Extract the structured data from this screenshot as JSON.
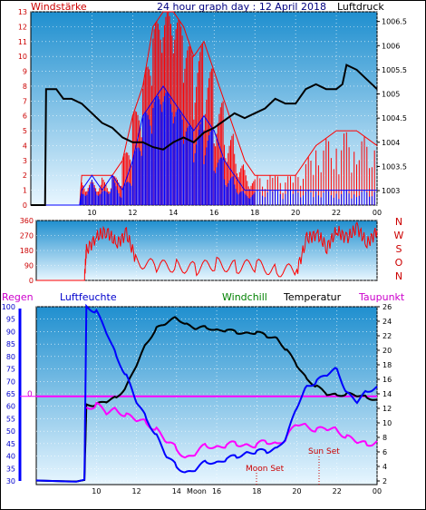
{
  "header": {
    "left_label": "Windstärke",
    "title": "24 hour graph day : 12 April 2018",
    "right_label": "Luftdruck"
  },
  "wind_axis_ticks": [
    "0",
    "1",
    "2",
    "3",
    "4",
    "5",
    "6",
    "7",
    "8",
    "9",
    "10",
    "11",
    "12",
    "13"
  ],
  "pressure_axis_ticks": [
    "1003",
    "1003.5",
    "1004",
    "1004.5",
    "1005",
    "1005.5",
    "1006",
    "1006.5"
  ],
  "x_ticks": [
    "10",
    "12",
    "14",
    "16",
    "18",
    "20",
    "22",
    "00"
  ],
  "direction_axis_ticks": [
    "0",
    "90",
    "180",
    "270",
    "360"
  ],
  "direction_letters": [
    "N",
    "W",
    "S",
    "O",
    "N"
  ],
  "bottom_legend": {
    "regen": "Regen",
    "luftfeuchte": "Luftfeuchte",
    "windchill": "Windchill",
    "temperatur": "Temperatur",
    "taupunkt": "Taupunkt"
  },
  "humidity_axis_ticks": [
    "30",
    "35",
    "40",
    "45",
    "50",
    "55",
    "60",
    "65",
    "70",
    "75",
    "80",
    "85",
    "90",
    "95",
    "100"
  ],
  "temp_axis_ticks": [
    "2",
    "4",
    "6",
    "8",
    "10",
    "12",
    "14",
    "16",
    "18",
    "20",
    "22",
    "24",
    "26"
  ],
  "rain_value_label": "0",
  "bottom_x_ticks": [
    "10",
    "12",
    "14",
    "16",
    "18",
    "20",
    "22",
    "00"
  ],
  "bottom_x_extra": "Moon",
  "annotations": {
    "sun_set": "Sun Set",
    "moon_set": "Moon Set"
  },
  "colors": {
    "panel_top": "#1f8fcf",
    "panel_bottom": "#e8f6ff",
    "wind_avg": "#0000ff",
    "wind_gust": "#ff0000",
    "pressure": "#000000",
    "direction": "#ff0000",
    "humidity": "#0000ff",
    "temperature": "#000000",
    "windchill": "#008000",
    "dewpoint": "#ff00ff",
    "rain_line": "#ff00ff"
  },
  "chart_data": [
    {
      "type": "line",
      "title": "24 hour graph day : 12 April 2018",
      "x_unit": "hour",
      "xlim": [
        7,
        24
      ],
      "y_left_label": "Windstärke",
      "ylim_left": [
        0,
        13
      ],
      "y_right_label": "Luftdruck",
      "ylim_right": [
        1002.7,
        1006.7
      ],
      "series": [
        {
          "name": "Luftdruck",
          "axis": "right",
          "x": [
            7.0,
            7.7,
            7.75,
            8.25,
            8.6,
            9.0,
            9.5,
            10.0,
            10.5,
            11.0,
            11.5,
            12.0,
            12.5,
            13.0,
            13.5,
            14.0,
            14.5,
            15.0,
            15.5,
            16.0,
            16.5,
            17.0,
            17.5,
            18.0,
            18.5,
            19.0,
            19.5,
            20.0,
            20.5,
            21.0,
            21.5,
            22.0,
            22.3,
            22.5,
            23.0,
            23.5,
            24.0
          ],
          "y": [
            1002.7,
            1002.7,
            1005.1,
            1005.1,
            1004.9,
            1004.9,
            1004.8,
            1004.6,
            1004.4,
            1004.3,
            1004.1,
            1004.0,
            1004.0,
            1003.9,
            1003.85,
            1004.0,
            1004.1,
            1004.0,
            1004.2,
            1004.3,
            1004.45,
            1004.6,
            1004.5,
            1004.6,
            1004.7,
            1004.9,
            1004.8,
            1004.8,
            1005.1,
            1005.2,
            1005.1,
            1005.1,
            1005.2,
            1005.6,
            1005.5,
            1005.3,
            1005.1
          ]
        },
        {
          "name": "wind_avg",
          "axis": "left",
          "x": [
            7.0,
            9.4,
            9.5,
            10.0,
            10.5,
            11.0,
            11.5,
            12.0,
            12.5,
            13.0,
            13.5,
            14.0,
            14.5,
            15.0,
            15.5,
            16.0,
            16.5,
            17.0,
            17.5,
            18.0,
            19.0,
            20.0,
            21.0,
            22.0,
            23.0,
            24.0
          ],
          "y": [
            0,
            0,
            1,
            2,
            1,
            2,
            1,
            3,
            6,
            7,
            8,
            7,
            6,
            5,
            6,
            5,
            3,
            2,
            1,
            1,
            1,
            1,
            1,
            1,
            1,
            1
          ]
        },
        {
          "name": "wind_gust",
          "axis": "left",
          "x": [
            7.0,
            9.4,
            9.5,
            10.0,
            10.5,
            11.0,
            11.5,
            12.0,
            12.5,
            13.0,
            13.5,
            14.0,
            14.5,
            15.0,
            15.5,
            16.0,
            16.5,
            17.0,
            17.5,
            18.0,
            19.0,
            20.0,
            21.0,
            22.0,
            23.0,
            24.0
          ],
          "y": [
            0,
            0,
            2,
            2,
            2,
            2,
            3,
            6,
            8,
            12,
            13,
            13,
            12,
            10,
            11,
            9,
            7,
            5,
            3,
            2,
            2,
            2,
            4,
            5,
            5,
            4
          ]
        }
      ]
    },
    {
      "type": "line",
      "x_unit": "hour",
      "xlim": [
        7,
        24
      ],
      "ylim": [
        0,
        360
      ],
      "series": [
        {
          "name": "direction",
          "x": [
            7.0,
            9.4,
            9.5,
            10.0,
            10.5,
            11.0,
            11.5,
            12.0,
            13.0,
            14.0,
            15.0,
            16.0,
            17.0,
            18.0,
            19.0,
            20.0,
            20.5,
            21.0,
            21.5,
            22.0,
            22.5,
            23.0,
            23.5,
            24.0
          ],
          "y": [
            0,
            0,
            180,
            260,
            300,
            220,
            280,
            120,
            80,
            90,
            70,
            100,
            80,
            90,
            60,
            60,
            250,
            280,
            200,
            300,
            250,
            320,
            220,
            300
          ]
        }
      ]
    },
    {
      "type": "line",
      "x_unit": "hour",
      "xlim": [
        7,
        24
      ],
      "y_left_label": "Luftfeuchte",
      "ylim_left": [
        30,
        100
      ],
      "y_right_label": "Temperatur",
      "ylim_right": [
        2,
        26
      ],
      "series": [
        {
          "name": "Luftfeuchte",
          "axis": "left",
          "x": [
            7.0,
            9.4,
            9.5,
            10.0,
            10.5,
            11.0,
            11.5,
            12.0,
            12.5,
            13.0,
            13.5,
            14.0,
            14.5,
            15.0,
            15.5,
            16.0,
            16.5,
            17.0,
            17.5,
            18.0,
            18.5,
            19.0,
            19.5,
            20.0,
            20.5,
            21.0,
            21.5,
            22.0,
            22.5,
            23.0,
            23.5,
            24.0
          ],
          "y": [
            30,
            30,
            100,
            98,
            90,
            80,
            72,
            62,
            55,
            48,
            40,
            36,
            33,
            35,
            38,
            37,
            39,
            40,
            41,
            42,
            42,
            43,
            48,
            60,
            68,
            70,
            73,
            75,
            65,
            62,
            66,
            68
          ]
        },
        {
          "name": "Temperatur",
          "axis": "right",
          "x": [
            7.0,
            9.4,
            9.5,
            10.0,
            10.5,
            11.0,
            11.5,
            12.0,
            12.5,
            13.0,
            13.5,
            14.0,
            14.5,
            15.0,
            15.5,
            16.0,
            16.5,
            17.0,
            17.5,
            18.0,
            18.5,
            19.0,
            19.5,
            20.0,
            20.5,
            21.0,
            21.5,
            22.0,
            22.5,
            23.0,
            23.5,
            24.0
          ],
          "y": [
            2,
            2,
            12.5,
            12.5,
            13,
            13.5,
            15,
            18,
            21,
            23,
            23.8,
            24.5,
            23.5,
            23,
            23.2,
            22.7,
            22.8,
            22.5,
            22.3,
            22.5,
            22,
            21.6,
            20,
            18,
            16,
            15,
            14,
            13.8,
            14,
            13.8,
            13.5,
            13.2
          ]
        },
        {
          "name": "Windchill",
          "axis": "right",
          "x": [
            7.0,
            9.4,
            9.5,
            10.0,
            10.5,
            11.0,
            11.5,
            12.0,
            12.5,
            13.0,
            13.5,
            14.0,
            14.5,
            15.0,
            15.5,
            16.0,
            16.5,
            17.0,
            17.5,
            18.0,
            18.5,
            19.0,
            19.5,
            20.0,
            20.5,
            21.0,
            21.5,
            22.0,
            22.5,
            23.0,
            23.5,
            24.0
          ],
          "y": [
            2,
            2,
            12.5,
            12.5,
            13,
            13.5,
            15,
            18,
            21,
            23,
            23.8,
            24.5,
            23.5,
            23,
            23.2,
            22.7,
            22.8,
            22.5,
            22.3,
            22.5,
            22,
            21.6,
            20,
            18,
            16,
            15,
            14,
            13.8,
            14,
            13.8,
            13.5,
            13.2
          ]
        },
        {
          "name": "Taupunkt",
          "axis": "right",
          "x": [
            9.5,
            10.0,
            10.5,
            11.0,
            11.5,
            12.0,
            12.5,
            13.0,
            13.5,
            14.0,
            14.5,
            15.0,
            15.5,
            16.0,
            16.5,
            17.0,
            17.5,
            18.0,
            18.5,
            19.0,
            19.5,
            20.0,
            20.5,
            21.0,
            21.5,
            22.0,
            22.5,
            23.0,
            23.5,
            24.0
          ],
          "y": [
            12,
            12.5,
            11.5,
            11.8,
            11,
            10.5,
            10,
            9,
            7.5,
            6.5,
            5,
            6,
            7,
            6.5,
            7,
            7.2,
            6.8,
            7,
            7.5,
            7,
            8,
            10,
            9.5,
            9,
            9.3,
            9,
            8,
            7.5,
            7,
            7.5
          ]
        },
        {
          "name": "Regen",
          "axis": "left",
          "x": [
            7.0,
            24.0
          ],
          "y": [
            64,
            64
          ]
        }
      ]
    }
  ]
}
